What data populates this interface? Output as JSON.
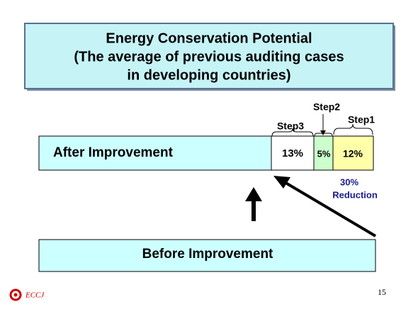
{
  "title": {
    "lines": [
      "Energy Conservation Potential",
      "(The average of previous auditing cases",
      "in developing countries)"
    ]
  },
  "after_bar": {
    "label": "After Improvement",
    "segments": [
      {
        "step": "Step3",
        "label": "13%"
      },
      {
        "step": "Step2",
        "label": "5%"
      },
      {
        "step": "Step1",
        "label": "12%"
      }
    ]
  },
  "reduction": {
    "value": "30%",
    "label": "Reduction"
  },
  "before_bar": {
    "label": "Before Improvement"
  },
  "footer": {
    "logo": "ECCJ",
    "page": "15"
  }
}
